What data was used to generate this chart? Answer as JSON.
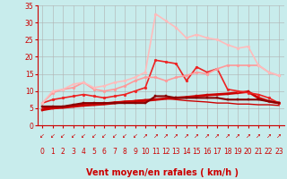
{
  "xlabel": "Vent moyen/en rafales ( km/h )",
  "xlim": [
    -0.5,
    23.5
  ],
  "ylim": [
    0,
    35
  ],
  "yticks": [
    0,
    5,
    10,
    15,
    20,
    25,
    30,
    35
  ],
  "xticks": [
    0,
    1,
    2,
    3,
    4,
    5,
    6,
    7,
    8,
    9,
    10,
    11,
    12,
    13,
    14,
    15,
    16,
    17,
    18,
    19,
    20,
    21,
    22,
    23
  ],
  "background_color": "#c8ecec",
  "grid_color": "#b0b0b0",
  "lines": [
    {
      "x": [
        0,
        1,
        2,
        3,
        4,
        5,
        6,
        7,
        8,
        9,
        10,
        11,
        12,
        13,
        14,
        15,
        16,
        17,
        18,
        19,
        20,
        21,
        22,
        23
      ],
      "y": [
        4.5,
        5.0,
        5.2,
        5.5,
        5.8,
        6.0,
        6.2,
        6.5,
        6.8,
        7.0,
        7.2,
        7.5,
        7.8,
        8.0,
        8.2,
        8.5,
        8.8,
        9.0,
        9.2,
        9.5,
        9.8,
        8.0,
        7.0,
        6.5
      ],
      "color": "#cc0000",
      "linewidth": 2.0,
      "marker": "s",
      "markersize": 2.0
    },
    {
      "x": [
        0,
        1,
        2,
        3,
        4,
        5,
        6,
        7,
        8,
        9,
        10,
        11,
        12,
        13,
        14,
        15,
        16,
        17,
        18,
        19,
        20,
        21,
        22,
        23
      ],
      "y": [
        5.0,
        5.2,
        5.5,
        5.8,
        6.2,
        6.5,
        6.5,
        6.8,
        7.0,
        7.2,
        7.5,
        7.5,
        7.8,
        7.5,
        7.2,
        7.0,
        6.8,
        6.5,
        6.5,
        6.2,
        6.2,
        6.0,
        6.0,
        5.8
      ],
      "color": "#cc0000",
      "linewidth": 1.0,
      "marker": null,
      "markersize": 0
    },
    {
      "x": [
        0,
        1,
        2,
        3,
        4,
        5,
        6,
        7,
        8,
        9,
        10,
        11,
        12,
        13,
        14,
        15,
        16,
        17,
        18,
        19,
        20,
        21,
        22,
        23
      ],
      "y": [
        6.5,
        7.5,
        8.0,
        8.5,
        9.0,
        8.5,
        8.0,
        8.5,
        9.0,
        10.0,
        11.0,
        19.0,
        18.5,
        18.0,
        13.0,
        17.0,
        15.5,
        16.5,
        10.5,
        10.0,
        9.5,
        9.0,
        8.0,
        6.5
      ],
      "color": "#ee2222",
      "linewidth": 1.2,
      "marker": "o",
      "markersize": 2.0
    },
    {
      "x": [
        0,
        1,
        2,
        3,
        4,
        5,
        6,
        7,
        8,
        9,
        10,
        11,
        12,
        13,
        14,
        15,
        16,
        17,
        18,
        19,
        20,
        21,
        22,
        23
      ],
      "y": [
        6.5,
        9.5,
        10.5,
        11.0,
        12.5,
        10.5,
        10.0,
        10.5,
        11.5,
        13.0,
        14.0,
        14.0,
        13.0,
        14.0,
        14.5,
        15.5,
        15.0,
        16.5,
        17.5,
        17.5,
        17.5,
        17.5,
        15.5,
        14.5
      ],
      "color": "#ff9999",
      "linewidth": 1.2,
      "marker": "o",
      "markersize": 2.0
    },
    {
      "x": [
        0,
        1,
        2,
        3,
        4,
        5,
        6,
        7,
        8,
        9,
        10,
        11,
        12,
        13,
        14,
        15,
        16,
        17,
        18,
        19,
        20,
        21,
        22,
        23
      ],
      "y": [
        6.5,
        10.0,
        10.5,
        12.0,
        12.5,
        11.0,
        11.5,
        12.5,
        13.0,
        14.0,
        15.5,
        32.5,
        30.5,
        28.5,
        25.5,
        26.5,
        25.5,
        25.0,
        23.5,
        22.5,
        23.0,
        17.5,
        15.5,
        14.5
      ],
      "color": "#ffbbbb",
      "linewidth": 1.2,
      "marker": "o",
      "markersize": 2.0
    },
    {
      "x": [
        0,
        1,
        2,
        3,
        4,
        5,
        6,
        7,
        8,
        9,
        10,
        11,
        12,
        13,
        14,
        15,
        16,
        17,
        18,
        19,
        20,
        21,
        22,
        23
      ],
      "y": [
        5.5,
        5.5,
        5.5,
        6.0,
        6.5,
        6.5,
        6.5,
        6.5,
        6.5,
        6.5,
        6.5,
        8.5,
        8.5,
        8.0,
        8.0,
        8.0,
        8.0,
        8.0,
        7.5,
        7.5,
        7.5,
        7.5,
        7.0,
        6.5
      ],
      "color": "#880000",
      "linewidth": 1.5,
      "marker": "s",
      "markersize": 1.8
    }
  ],
  "wind_dir_left": [
    1,
    1,
    1,
    1,
    1,
    1,
    1,
    1,
    1,
    1,
    0,
    0,
    0,
    0,
    0,
    0,
    0,
    0,
    0,
    0,
    0,
    0,
    0,
    0
  ],
  "tick_fontsize": 5.5,
  "label_fontsize": 7,
  "label_color": "#cc0000",
  "tick_color": "#cc0000",
  "arrow_fontsize": 5.0
}
